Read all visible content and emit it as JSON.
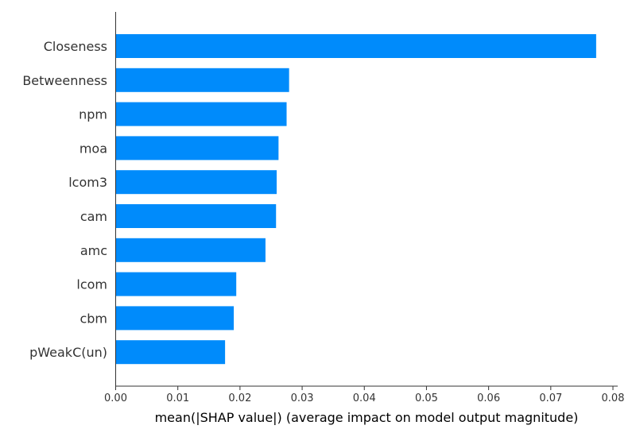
{
  "chart_data": {
    "type": "bar",
    "orientation": "horizontal",
    "categories": [
      "Closeness",
      "Betweenness",
      "npm",
      "moa",
      "lcom3",
      "cam",
      "amc",
      "lcom",
      "cbm",
      "pWeakC(un)"
    ],
    "values": [
      0.0773,
      0.0279,
      0.0275,
      0.0262,
      0.0259,
      0.0258,
      0.0241,
      0.0194,
      0.019,
      0.0176
    ],
    "xlabel": "mean(|SHAP value|) (average impact on model output magnitude)",
    "ylabel": "",
    "xlim": [
      0,
      0.08
    ],
    "xticks": [
      "0.00",
      "0.01",
      "0.02",
      "0.03",
      "0.04",
      "0.05",
      "0.06",
      "0.07",
      "0.08"
    ],
    "bar_color": "#008bfb",
    "grid": false,
    "legend": "none"
  }
}
